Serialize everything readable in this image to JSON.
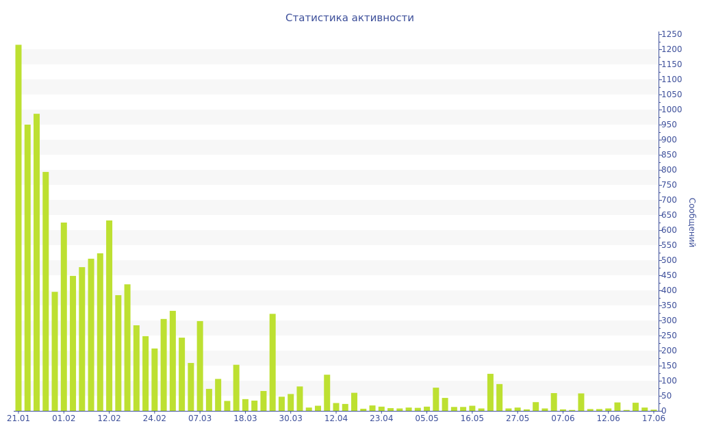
{
  "chart_data": {
    "type": "bar",
    "title": "Статистика активности",
    "xlabel": "",
    "ylabel": "Сообщений",
    "y_axis_side": "right",
    "ylim": [
      0,
      1250
    ],
    "ytick_step": 50,
    "grid": "alternating horizontal bands",
    "legend": "none",
    "colors": {
      "bar": "#bde031",
      "axis": "#3d4f9a",
      "band": "#f7f7f7"
    },
    "x_tick_labels": [
      "21.01",
      "01.02",
      "12.02",
      "24.02",
      "07.03",
      "18.03",
      "30.03",
      "12.04",
      "23.04",
      "05.05",
      "16.05",
      "27.05",
      "07.06",
      "12.06",
      "17.06"
    ],
    "x_tick_every": 5,
    "values": [
      1215,
      950,
      986,
      793,
      395,
      625,
      448,
      477,
      505,
      523,
      632,
      384,
      420,
      284,
      248,
      207,
      305,
      332,
      243,
      159,
      298,
      73,
      106,
      33,
      153,
      39,
      34,
      66,
      322,
      47,
      56,
      81,
      11,
      17,
      120,
      26,
      23,
      60,
      7,
      18,
      14,
      9,
      8,
      11,
      10,
      14,
      77,
      43,
      13,
      13,
      17,
      8,
      123,
      89,
      8,
      11,
      5,
      29,
      8,
      59,
      5,
      3,
      58,
      6,
      6,
      8,
      28,
      3,
      27,
      11,
      4
    ]
  }
}
